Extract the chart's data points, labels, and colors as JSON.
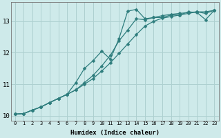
{
  "title": "",
  "xlabel": "Humidex (Indice chaleur)",
  "ylabel": "",
  "bg_color": "#ceeaea",
  "grid_color": "#add0d0",
  "line_color": "#2e7d7d",
  "xlim": [
    -0.5,
    23.5
  ],
  "ylim": [
    9.85,
    13.6
  ],
  "xticks": [
    0,
    1,
    2,
    3,
    4,
    5,
    6,
    7,
    8,
    9,
    10,
    11,
    12,
    13,
    14,
    15,
    16,
    17,
    18,
    19,
    20,
    21,
    22,
    23
  ],
  "yticks": [
    10,
    11,
    12,
    13
  ],
  "line1_x": [
    0,
    1,
    2,
    3,
    4,
    5,
    6,
    7,
    8,
    9,
    10,
    11,
    12,
    13,
    14,
    15,
    16,
    17,
    18,
    19,
    20,
    21,
    22,
    23
  ],
  "line1_y": [
    10.05,
    10.07,
    10.18,
    10.28,
    10.42,
    10.55,
    10.68,
    10.82,
    11.0,
    11.18,
    11.42,
    11.68,
    11.98,
    12.28,
    12.58,
    12.85,
    13.0,
    13.1,
    13.15,
    13.2,
    13.25,
    13.3,
    13.3,
    13.35
  ],
  "line2_x": [
    0,
    1,
    2,
    3,
    4,
    5,
    6,
    7,
    8,
    9,
    10,
    11,
    12,
    13,
    14,
    15,
    16,
    17,
    18,
    19,
    20,
    21,
    22,
    23
  ],
  "line2_y": [
    10.05,
    10.07,
    10.18,
    10.28,
    10.42,
    10.55,
    10.68,
    10.82,
    11.05,
    11.28,
    11.58,
    11.92,
    12.38,
    12.72,
    13.08,
    13.05,
    13.12,
    13.18,
    13.22,
    13.25,
    13.28,
    13.3,
    13.25,
    13.35
  ],
  "line3_x": [
    0,
    1,
    2,
    3,
    4,
    5,
    6,
    7,
    8,
    9,
    10,
    11,
    12,
    13,
    14,
    15,
    16,
    17,
    18,
    19,
    20,
    21,
    22,
    23
  ],
  "line3_y": [
    10.05,
    10.07,
    10.18,
    10.28,
    10.42,
    10.55,
    10.68,
    11.05,
    11.5,
    11.75,
    12.05,
    11.8,
    12.45,
    13.32,
    13.38,
    13.08,
    13.12,
    13.12,
    13.2,
    13.2,
    13.3,
    13.28,
    13.05,
    13.35
  ],
  "marker": "D",
  "markersize": 2.5,
  "linewidth": 0.9
}
